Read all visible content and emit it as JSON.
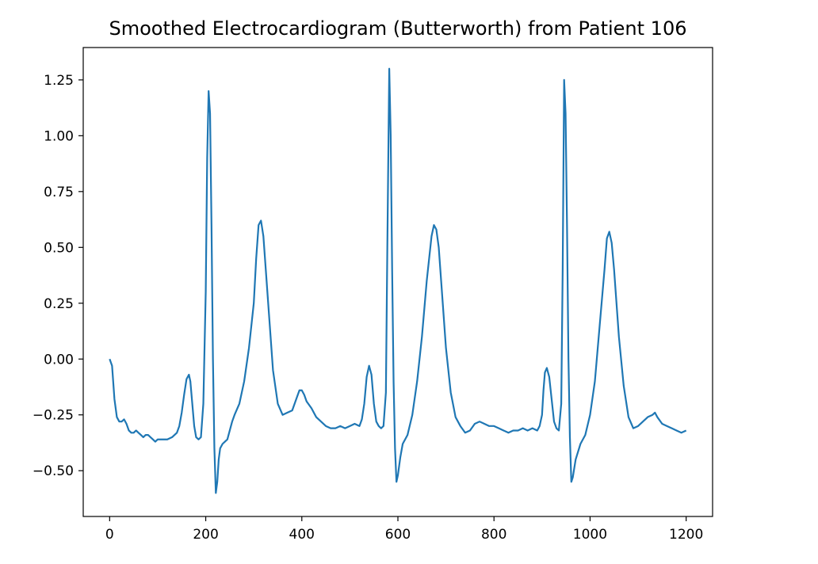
{
  "chart_data": {
    "type": "line",
    "title": "Smoothed Electrocardiogram (Butterworth) from Patient 106",
    "xlabel": "",
    "ylabel": "",
    "xlim": [
      -55,
      1255
    ],
    "ylim": [
      -0.705,
      1.395
    ],
    "xticks": [
      0,
      200,
      400,
      600,
      800,
      1000,
      1200
    ],
    "yticks": [
      -0.5,
      -0.25,
      0.0,
      0.25,
      0.5,
      0.75,
      1.0,
      1.25
    ],
    "xtick_labels": [
      "0",
      "200",
      "400",
      "600",
      "800",
      "1000",
      "1200"
    ],
    "ytick_labels": [
      "−0.50",
      "−0.25",
      "0.00",
      "0.25",
      "0.50",
      "0.75",
      "1.00",
      "1.25"
    ],
    "grid": false,
    "series": [
      {
        "color": "#1f77b4",
        "x": [
          0,
          5,
          10,
          15,
          20,
          25,
          30,
          35,
          40,
          45,
          50,
          55,
          60,
          65,
          70,
          75,
          80,
          85,
          90,
          95,
          100,
          110,
          120,
          130,
          140,
          145,
          150,
          155,
          160,
          165,
          168,
          172,
          176,
          180,
          185,
          190,
          195,
          200,
          203,
          206,
          209,
          212,
          215,
          218,
          221,
          224,
          227,
          230,
          235,
          240,
          245,
          250,
          255,
          260,
          270,
          280,
          290,
          300,
          305,
          310,
          315,
          320,
          330,
          340,
          350,
          360,
          370,
          380,
          390,
          395,
          400,
          405,
          410,
          420,
          430,
          440,
          450,
          460,
          470,
          480,
          490,
          500,
          510,
          520,
          525,
          530,
          535,
          540,
          545,
          550,
          555,
          560,
          565,
          570,
          575,
          578,
          582,
          585,
          588,
          591,
          594,
          597,
          600,
          605,
          610,
          615,
          620,
          630,
          640,
          650,
          660,
          670,
          675,
          680,
          685,
          690,
          700,
          710,
          720,
          730,
          740,
          750,
          760,
          770,
          780,
          790,
          800,
          810,
          820,
          830,
          840,
          850,
          860,
          870,
          880,
          890,
          895,
          900,
          903,
          906,
          910,
          915,
          920,
          925,
          930,
          935,
          940,
          943,
          946,
          949,
          952,
          955,
          958,
          961,
          964,
          970,
          980,
          990,
          1000,
          1010,
          1020,
          1030,
          1035,
          1040,
          1045,
          1050,
          1060,
          1070,
          1080,
          1090,
          1100,
          1110,
          1120,
          1130,
          1135,
          1140,
          1150,
          1160,
          1170,
          1180,
          1190,
          1200
        ],
        "y": [
          0.0,
          -0.03,
          -0.18,
          -0.26,
          -0.28,
          -0.28,
          -0.27,
          -0.29,
          -0.32,
          -0.33,
          -0.33,
          -0.32,
          -0.33,
          -0.34,
          -0.35,
          -0.34,
          -0.34,
          -0.35,
          -0.36,
          -0.37,
          -0.36,
          -0.36,
          -0.36,
          -0.35,
          -0.33,
          -0.3,
          -0.24,
          -0.16,
          -0.09,
          -0.07,
          -0.1,
          -0.2,
          -0.3,
          -0.35,
          -0.36,
          -0.35,
          -0.2,
          0.3,
          0.9,
          1.2,
          1.1,
          0.6,
          0.0,
          -0.4,
          -0.6,
          -0.55,
          -0.45,
          -0.4,
          -0.38,
          -0.37,
          -0.36,
          -0.32,
          -0.28,
          -0.25,
          -0.2,
          -0.1,
          0.05,
          0.25,
          0.45,
          0.6,
          0.62,
          0.55,
          0.25,
          -0.05,
          -0.2,
          -0.25,
          -0.24,
          -0.23,
          -0.17,
          -0.14,
          -0.14,
          -0.16,
          -0.19,
          -0.22,
          -0.26,
          -0.28,
          -0.3,
          -0.31,
          -0.31,
          -0.3,
          -0.31,
          -0.3,
          -0.29,
          -0.3,
          -0.27,
          -0.2,
          -0.08,
          -0.03,
          -0.07,
          -0.2,
          -0.28,
          -0.3,
          -0.31,
          -0.3,
          -0.15,
          0.5,
          1.3,
          1.0,
          0.4,
          -0.1,
          -0.4,
          -0.55,
          -0.52,
          -0.44,
          -0.38,
          -0.36,
          -0.34,
          -0.25,
          -0.1,
          0.1,
          0.35,
          0.55,
          0.6,
          0.58,
          0.5,
          0.35,
          0.05,
          -0.15,
          -0.26,
          -0.3,
          -0.33,
          -0.32,
          -0.29,
          -0.28,
          -0.29,
          -0.3,
          -0.3,
          -0.31,
          -0.32,
          -0.33,
          -0.32,
          -0.32,
          -0.31,
          -0.32,
          -0.31,
          -0.32,
          -0.3,
          -0.25,
          -0.14,
          -0.06,
          -0.04,
          -0.08,
          -0.18,
          -0.28,
          -0.31,
          -0.32,
          -0.2,
          0.4,
          1.25,
          1.1,
          0.6,
          0.0,
          -0.35,
          -0.55,
          -0.53,
          -0.45,
          -0.38,
          -0.34,
          -0.25,
          -0.1,
          0.15,
          0.4,
          0.54,
          0.57,
          0.52,
          0.4,
          0.1,
          -0.12,
          -0.26,
          -0.31,
          -0.3,
          -0.28,
          -0.26,
          -0.25,
          -0.24,
          -0.26,
          -0.29,
          -0.3,
          -0.31,
          -0.32,
          -0.33,
          -0.32
        ]
      }
    ]
  }
}
